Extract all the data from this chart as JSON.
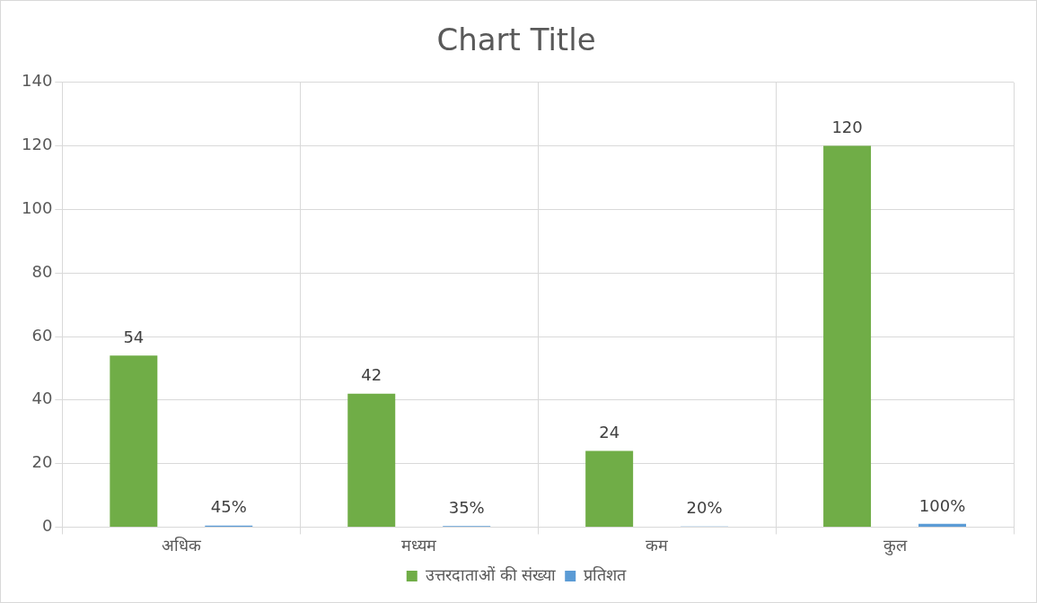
{
  "chart_data": {
    "type": "bar",
    "title": "Chart Title",
    "categories": [
      "अधिक",
      "मध्यम",
      "कम",
      "कुल"
    ],
    "series": [
      {
        "name": "उत्तरदाताओं की संख्या",
        "color": "#70ad47",
        "values": [
          54,
          42,
          24,
          120
        ],
        "value_labels": [
          "54",
          "42",
          "24",
          "120"
        ]
      },
      {
        "name": "प्रतिशत",
        "color": "#5b9bd5",
        "values": [
          0.45,
          0.35,
          0.2,
          1
        ],
        "value_labels": [
          "45%",
          "35%",
          "20%",
          "100%"
        ]
      }
    ],
    "ylim": [
      0,
      140
    ],
    "yticks": [
      0,
      20,
      40,
      60,
      80,
      100,
      120,
      140
    ],
    "grid": true,
    "legend": "bottom"
  }
}
